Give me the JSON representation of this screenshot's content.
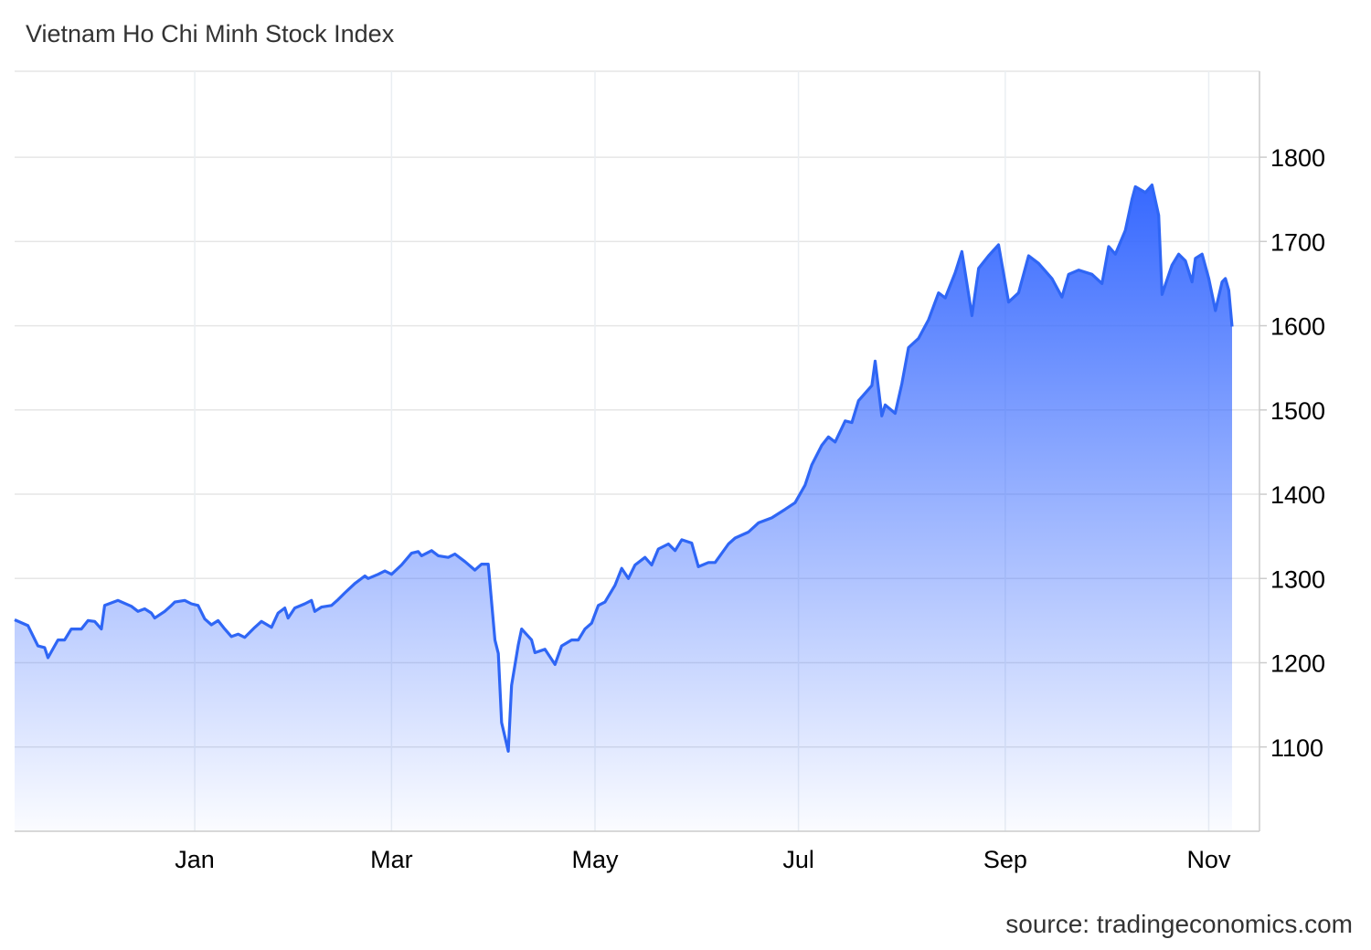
{
  "header": {
    "title": "Vietnam Ho Chi Minh Stock Index"
  },
  "footer": {
    "source": "source: tradingeconomics.com"
  },
  "chart_data": {
    "type": "area",
    "title": "Vietnam Ho Chi Minh Stock Index",
    "xlabel": "",
    "ylabel": "",
    "xlim": [
      "2024-11-08",
      "2025-11-08"
    ],
    "ylim": [
      1000,
      1902
    ],
    "y_axis_position": "right",
    "grid": true,
    "colors": {
      "line": "#2f66f5",
      "fill": "#3366ff"
    },
    "x_ticks": [
      {
        "date": "2025-01-01",
        "label": "Jan"
      },
      {
        "date": "2025-03-01",
        "label": "Mar"
      },
      {
        "date": "2025-05-01",
        "label": "May"
      },
      {
        "date": "2025-07-01",
        "label": "Jul"
      },
      {
        "date": "2025-09-01",
        "label": "Sep"
      },
      {
        "date": "2025-11-01",
        "label": "Nov"
      }
    ],
    "y_ticks": [
      {
        "value": 1100,
        "label": "1100"
      },
      {
        "value": 1200,
        "label": "1200"
      },
      {
        "value": 1300,
        "label": "1300"
      },
      {
        "value": 1400,
        "label": "1400"
      },
      {
        "value": 1500,
        "label": "1500"
      },
      {
        "value": 1600,
        "label": "1600"
      },
      {
        "value": 1700,
        "label": "1700"
      },
      {
        "value": 1800,
        "label": "1800"
      }
    ],
    "series": [
      {
        "points": [
          [
            "2024-11-08",
            1251
          ],
          [
            "2024-11-12",
            1244
          ],
          [
            "2024-11-15",
            1220
          ],
          [
            "2024-11-17",
            1218
          ],
          [
            "2024-11-18",
            1206
          ],
          [
            "2024-11-21",
            1227
          ],
          [
            "2024-11-23",
            1227
          ],
          [
            "2024-11-25",
            1240
          ],
          [
            "2024-11-28",
            1240
          ],
          [
            "2024-11-30",
            1250
          ],
          [
            "2024-12-02",
            1249
          ],
          [
            "2024-12-04",
            1240
          ],
          [
            "2024-12-05",
            1268
          ],
          [
            "2024-12-09",
            1274
          ],
          [
            "2024-12-13",
            1267
          ],
          [
            "2024-12-15",
            1261
          ],
          [
            "2024-12-17",
            1264
          ],
          [
            "2024-12-19",
            1259
          ],
          [
            "2024-12-20",
            1253
          ],
          [
            "2024-12-23",
            1261
          ],
          [
            "2024-12-25",
            1268
          ],
          [
            "2024-12-26",
            1272
          ],
          [
            "2024-12-29",
            1274
          ],
          [
            "2024-12-31",
            1270
          ],
          [
            "2025-01-02",
            1268
          ],
          [
            "2025-01-04",
            1252
          ],
          [
            "2025-01-06",
            1245
          ],
          [
            "2025-01-08",
            1250
          ],
          [
            "2025-01-10",
            1240
          ],
          [
            "2025-01-12",
            1231
          ],
          [
            "2025-01-14",
            1234
          ],
          [
            "2025-01-16",
            1230
          ],
          [
            "2025-01-19",
            1242
          ],
          [
            "2025-01-21",
            1249
          ],
          [
            "2025-01-24",
            1242
          ],
          [
            "2025-01-26",
            1259
          ],
          [
            "2025-01-28",
            1265
          ],
          [
            "2025-01-29",
            1253
          ],
          [
            "2025-01-31",
            1265
          ],
          [
            "2025-02-03",
            1270
          ],
          [
            "2025-02-05",
            1274
          ],
          [
            "2025-02-06",
            1261
          ],
          [
            "2025-02-08",
            1266
          ],
          [
            "2025-02-11",
            1268
          ],
          [
            "2025-02-13",
            1275
          ],
          [
            "2025-02-15",
            1283
          ],
          [
            "2025-02-18",
            1294
          ],
          [
            "2025-02-21",
            1303
          ],
          [
            "2025-02-22",
            1300
          ],
          [
            "2025-02-25",
            1305
          ],
          [
            "2025-02-27",
            1309
          ],
          [
            "2025-03-01",
            1305
          ],
          [
            "2025-03-04",
            1316
          ],
          [
            "2025-03-07",
            1330
          ],
          [
            "2025-03-09",
            1332
          ],
          [
            "2025-03-10",
            1327
          ],
          [
            "2025-03-13",
            1333
          ],
          [
            "2025-03-15",
            1327
          ],
          [
            "2025-03-18",
            1325
          ],
          [
            "2025-03-20",
            1329
          ],
          [
            "2025-03-23",
            1320
          ],
          [
            "2025-03-26",
            1310
          ],
          [
            "2025-03-28",
            1317
          ],
          [
            "2025-03-30",
            1317
          ],
          [
            "2025-04-01",
            1227
          ],
          [
            "2025-04-02",
            1211
          ],
          [
            "2025-04-03",
            1129
          ],
          [
            "2025-04-05",
            1095
          ],
          [
            "2025-04-06",
            1173
          ],
          [
            "2025-04-08",
            1221
          ],
          [
            "2025-04-09",
            1240
          ],
          [
            "2025-04-12",
            1227
          ],
          [
            "2025-04-13",
            1212
          ],
          [
            "2025-04-16",
            1216
          ],
          [
            "2025-04-19",
            1198
          ],
          [
            "2025-04-21",
            1220
          ],
          [
            "2025-04-24",
            1227
          ],
          [
            "2025-04-26",
            1227
          ],
          [
            "2025-04-28",
            1240
          ],
          [
            "2025-04-30",
            1247
          ],
          [
            "2025-05-02",
            1268
          ],
          [
            "2025-05-04",
            1272
          ],
          [
            "2025-05-07",
            1292
          ],
          [
            "2025-05-09",
            1312
          ],
          [
            "2025-05-11",
            1300
          ],
          [
            "2025-05-13",
            1316
          ],
          [
            "2025-05-16",
            1325
          ],
          [
            "2025-05-18",
            1316
          ],
          [
            "2025-05-20",
            1335
          ],
          [
            "2025-05-23",
            1341
          ],
          [
            "2025-05-25",
            1333
          ],
          [
            "2025-05-27",
            1346
          ],
          [
            "2025-05-30",
            1342
          ],
          [
            "2025-06-01",
            1314
          ],
          [
            "2025-06-04",
            1319
          ],
          [
            "2025-06-06",
            1319
          ],
          [
            "2025-06-10",
            1341
          ],
          [
            "2025-06-12",
            1348
          ],
          [
            "2025-06-16",
            1355
          ],
          [
            "2025-06-19",
            1366
          ],
          [
            "2025-06-23",
            1372
          ],
          [
            "2025-06-27",
            1382
          ],
          [
            "2025-06-30",
            1390
          ],
          [
            "2025-07-03",
            1411
          ],
          [
            "2025-07-05",
            1435
          ],
          [
            "2025-07-08",
            1458
          ],
          [
            "2025-07-10",
            1468
          ],
          [
            "2025-07-12",
            1462
          ],
          [
            "2025-07-15",
            1487
          ],
          [
            "2025-07-17",
            1485
          ],
          [
            "2025-07-19",
            1511
          ],
          [
            "2025-07-23",
            1529
          ],
          [
            "2025-07-24",
            1558
          ],
          [
            "2025-07-26",
            1493
          ],
          [
            "2025-07-27",
            1506
          ],
          [
            "2025-07-30",
            1496
          ],
          [
            "2025-08-01",
            1531
          ],
          [
            "2025-08-03",
            1574
          ],
          [
            "2025-08-06",
            1585
          ],
          [
            "2025-08-09",
            1607
          ],
          [
            "2025-08-12",
            1639
          ],
          [
            "2025-08-14",
            1633
          ],
          [
            "2025-08-17",
            1663
          ],
          [
            "2025-08-19",
            1688
          ],
          [
            "2025-08-22",
            1612
          ],
          [
            "2025-08-24",
            1668
          ],
          [
            "2025-08-27",
            1683
          ],
          [
            "2025-08-30",
            1696
          ],
          [
            "2025-09-02",
            1628
          ],
          [
            "2025-09-05",
            1639
          ],
          [
            "2025-09-08",
            1683
          ],
          [
            "2025-09-11",
            1674
          ],
          [
            "2025-09-15",
            1656
          ],
          [
            "2025-09-18",
            1634
          ],
          [
            "2025-09-20",
            1661
          ],
          [
            "2025-09-23",
            1666
          ],
          [
            "2025-09-27",
            1661
          ],
          [
            "2025-09-30",
            1650
          ],
          [
            "2025-10-02",
            1694
          ],
          [
            "2025-10-04",
            1685
          ],
          [
            "2025-10-07",
            1713
          ],
          [
            "2025-10-09",
            1750
          ],
          [
            "2025-10-10",
            1765
          ],
          [
            "2025-10-13",
            1758
          ],
          [
            "2025-10-15",
            1767
          ],
          [
            "2025-10-17",
            1731
          ],
          [
            "2025-10-18",
            1637
          ],
          [
            "2025-10-21",
            1672
          ],
          [
            "2025-10-23",
            1685
          ],
          [
            "2025-10-25",
            1677
          ],
          [
            "2025-10-27",
            1652
          ],
          [
            "2025-10-28",
            1680
          ],
          [
            "2025-10-30",
            1685
          ],
          [
            "2025-11-01",
            1656
          ],
          [
            "2025-11-03",
            1618
          ],
          [
            "2025-11-05",
            1652
          ],
          [
            "2025-11-06",
            1656
          ],
          [
            "2025-11-07",
            1642
          ],
          [
            "2025-11-08",
            1599
          ]
        ]
      }
    ]
  }
}
